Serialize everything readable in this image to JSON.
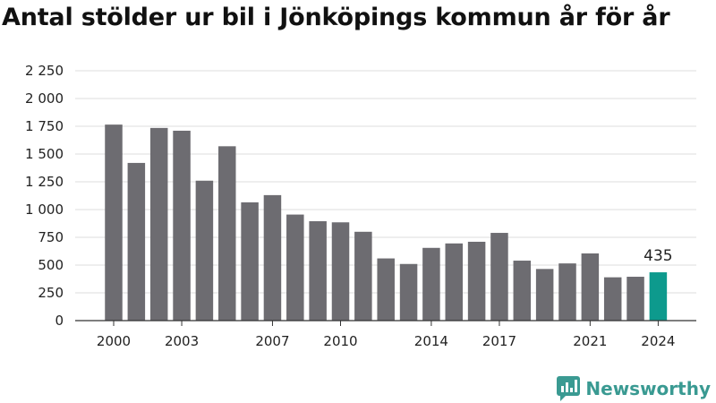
{
  "chart_data": {
    "type": "bar",
    "title": "Antal stölder ur bil i Jönköpings kommun år för år",
    "categories": [
      "2000",
      "2001",
      "2002",
      "2003",
      "2004",
      "2005",
      "2006",
      "2007",
      "2008",
      "2009",
      "2010",
      "2011",
      "2012",
      "2013",
      "2014",
      "2015",
      "2016",
      "2017",
      "2018",
      "2019",
      "2020",
      "2021",
      "2022",
      "2023",
      "2024"
    ],
    "x_tick_labels": [
      "2000",
      "2003",
      "2007",
      "2010",
      "2014",
      "2017",
      "2021",
      "2024"
    ],
    "values": [
      1765,
      1420,
      1735,
      1710,
      1260,
      1570,
      1065,
      1130,
      955,
      895,
      885,
      800,
      560,
      510,
      655,
      695,
      710,
      790,
      540,
      465,
      515,
      605,
      390,
      395,
      435
    ],
    "y_ticks": [
      0,
      250,
      500,
      750,
      1000,
      1250,
      1500,
      1750,
      2000,
      2250
    ],
    "y_tick_labels": [
      "0",
      "250",
      "500",
      "750",
      "1 000",
      "1 250",
      "1 500",
      "1 750",
      "2 000",
      "2 250"
    ],
    "ylim": [
      0,
      2250
    ],
    "xlabel": "",
    "ylabel": "",
    "grid": true,
    "bar_color": "#6d6c71",
    "highlight_color": "#0d9a8d",
    "highlight_category": "2024",
    "data_labels": [
      {
        "category": "2024",
        "text": "435"
      }
    ]
  },
  "brand": {
    "name": "Newsworthy",
    "icon": "newsworthy-logo-icon",
    "color": "#3a9a92"
  }
}
